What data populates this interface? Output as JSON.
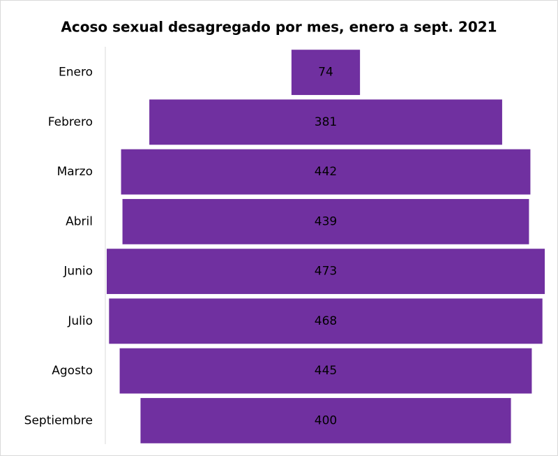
{
  "chart_data": {
    "type": "funnel",
    "title": "Acoso sexual desagregado por mes, enero a sept. 2021",
    "categories": [
      "Enero",
      "Febrero",
      "Marzo",
      "Abril",
      "Junio",
      "Julio",
      "Agosto",
      "Septiembre"
    ],
    "values": [
      74,
      381,
      442,
      439,
      473,
      468,
      445,
      400
    ],
    "color": "#7030a0"
  }
}
